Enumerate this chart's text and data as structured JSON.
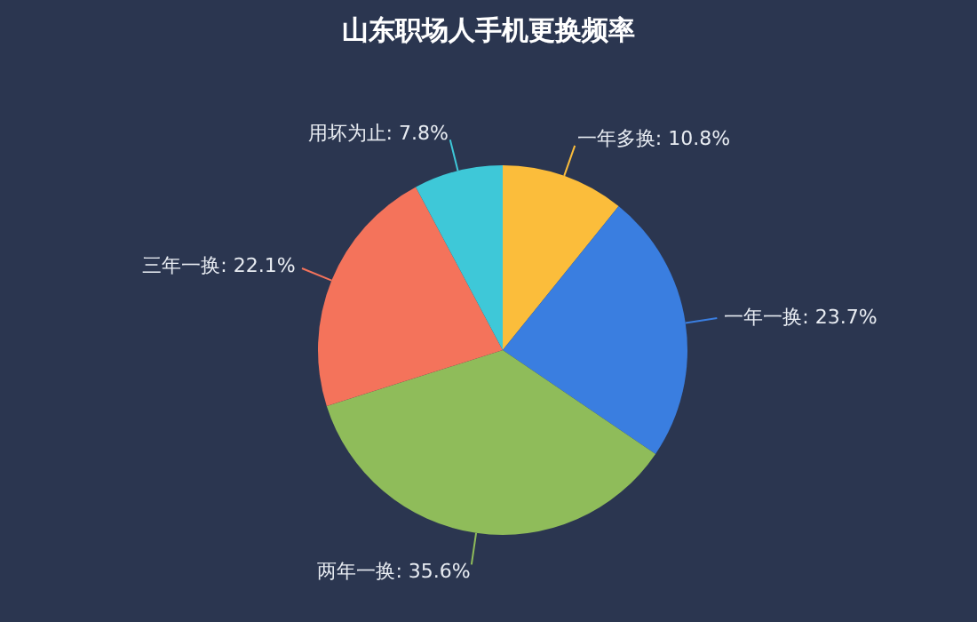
{
  "chart_data": {
    "type": "pie",
    "title": "山东职场人手机更换频率",
    "categories": [
      "一年多换",
      "一年一换",
      "两年一换",
      "三年一换",
      "用坏为止"
    ],
    "values": [
      10.8,
      23.7,
      35.6,
      22.1,
      7.8
    ],
    "value_labels": [
      "10.8%",
      "23.7%",
      "35.6%",
      "22.1%",
      "7.8%"
    ],
    "colors": [
      "#fbbd3b",
      "#3a7ee0",
      "#8fbc5a",
      "#f4735b",
      "#3ec8d8"
    ],
    "legend": false
  }
}
